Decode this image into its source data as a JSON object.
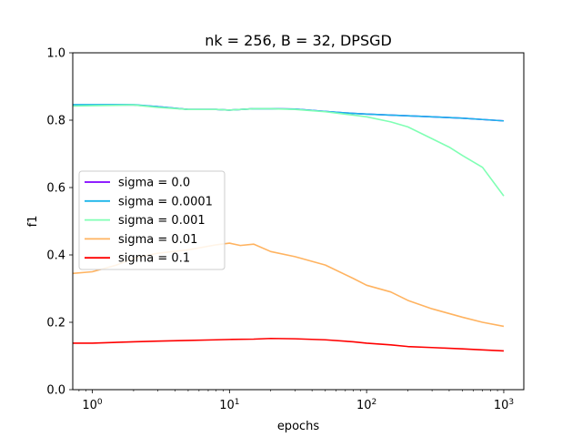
{
  "chart_data": {
    "type": "line",
    "title": "nk = 256, B = 32, DPSGD",
    "xlabel": "epochs",
    "ylabel": "f1",
    "xscale": "log",
    "xlim": [
      0.72,
      1400
    ],
    "ylim": [
      0.0,
      1.0
    ],
    "xticks": [
      {
        "value": 1,
        "base": "10",
        "exp": "0"
      },
      {
        "value": 10,
        "base": "10",
        "exp": "1"
      },
      {
        "value": 100,
        "base": "10",
        "exp": "2"
      },
      {
        "value": 1000,
        "base": "10",
        "exp": "3"
      }
    ],
    "yticks": [
      "0.0",
      "0.2",
      "0.4",
      "0.6",
      "0.8",
      "1.0"
    ],
    "grid": false,
    "legend_position": "center-left",
    "series": [
      {
        "name": "sigma = 0.0",
        "color": "#8000ff",
        "x": [
          0.72,
          1,
          2,
          3,
          5,
          8,
          10,
          15,
          20,
          30,
          50,
          80,
          100,
          150,
          200,
          300,
          500,
          700,
          1000
        ],
        "y": [
          0.845,
          0.845,
          0.845,
          0.84,
          0.832,
          0.832,
          0.83,
          0.834,
          0.834,
          0.833,
          0.826,
          0.82,
          0.818,
          0.815,
          0.813,
          0.81,
          0.806,
          0.802,
          0.798
        ]
      },
      {
        "name": "sigma = 0.0001",
        "color": "#1cb5ea",
        "x": [
          0.72,
          1,
          2,
          3,
          5,
          8,
          10,
          15,
          20,
          30,
          50,
          80,
          100,
          150,
          200,
          300,
          500,
          700,
          1000
        ],
        "y": [
          0.846,
          0.846,
          0.846,
          0.84,
          0.832,
          0.832,
          0.83,
          0.834,
          0.834,
          0.833,
          0.826,
          0.82,
          0.818,
          0.815,
          0.813,
          0.81,
          0.806,
          0.802,
          0.798
        ]
      },
      {
        "name": "sigma = 0.001",
        "color": "#80ffb4",
        "x": [
          0.72,
          1,
          2,
          3,
          5,
          8,
          10,
          15,
          20,
          30,
          50,
          80,
          100,
          150,
          200,
          300,
          400,
          500,
          700,
          1000
        ],
        "y": [
          0.842,
          0.843,
          0.845,
          0.838,
          0.832,
          0.832,
          0.83,
          0.834,
          0.834,
          0.832,
          0.825,
          0.815,
          0.81,
          0.795,
          0.78,
          0.745,
          0.72,
          0.695,
          0.66,
          0.575
        ]
      },
      {
        "name": "sigma = 0.01",
        "color": "#ffb360",
        "x": [
          0.72,
          1,
          1.5,
          2,
          3,
          5,
          8,
          10,
          12,
          15,
          20,
          30,
          50,
          80,
          100,
          150,
          200,
          300,
          500,
          700,
          1000
        ],
        "y": [
          0.345,
          0.35,
          0.37,
          0.39,
          0.405,
          0.415,
          0.43,
          0.435,
          0.428,
          0.432,
          0.41,
          0.395,
          0.37,
          0.33,
          0.31,
          0.29,
          0.265,
          0.24,
          0.215,
          0.2,
          0.188
        ]
      },
      {
        "name": "sigma = 0.1",
        "color": "#ff0000",
        "x": [
          0.72,
          1,
          2,
          3,
          5,
          8,
          10,
          15,
          20,
          30,
          50,
          80,
          100,
          150,
          200,
          300,
          500,
          700,
          1000
        ],
        "y": [
          0.138,
          0.138,
          0.142,
          0.144,
          0.146,
          0.148,
          0.149,
          0.15,
          0.152,
          0.151,
          0.148,
          0.142,
          0.138,
          0.133,
          0.128,
          0.125,
          0.121,
          0.118,
          0.115
        ]
      }
    ]
  }
}
